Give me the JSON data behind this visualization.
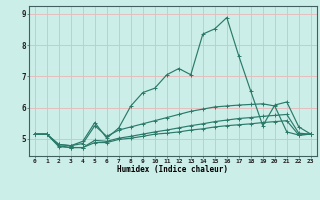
{
  "xlabel": "Humidex (Indice chaleur)",
  "background_color": "#cceee8",
  "grid_color": "#e8b8b8",
  "line_color": "#2a7a6a",
  "xlim": [
    -0.5,
    23.5
  ],
  "ylim": [
    4.45,
    9.25
  ],
  "xticks": [
    0,
    1,
    2,
    3,
    4,
    5,
    6,
    7,
    8,
    9,
    10,
    11,
    12,
    13,
    14,
    15,
    16,
    17,
    18,
    19,
    20,
    21,
    22,
    23
  ],
  "yticks": [
    5,
    6,
    7,
    8,
    9
  ],
  "series": [
    [
      5.15,
      5.15,
      4.78,
      4.72,
      4.72,
      4.88,
      4.88,
      4.98,
      5.02,
      5.08,
      5.15,
      5.18,
      5.22,
      5.28,
      5.32,
      5.38,
      5.42,
      5.45,
      5.48,
      5.52,
      5.55,
      5.58,
      5.12,
      5.15
    ],
    [
      5.15,
      5.15,
      4.75,
      4.72,
      4.72,
      4.95,
      4.92,
      5.02,
      5.08,
      5.15,
      5.22,
      5.28,
      5.35,
      5.42,
      5.48,
      5.55,
      5.6,
      5.65,
      5.68,
      5.72,
      5.75,
      5.78,
      5.18,
      5.15
    ],
    [
      5.15,
      5.15,
      4.82,
      4.78,
      4.85,
      5.42,
      5.08,
      5.28,
      5.38,
      5.48,
      5.58,
      5.68,
      5.78,
      5.88,
      5.95,
      6.02,
      6.05,
      6.08,
      6.1,
      6.12,
      6.05,
      5.22,
      5.12,
      5.15
    ],
    [
      5.15,
      5.15,
      4.82,
      4.78,
      4.92,
      5.52,
      5.02,
      5.35,
      6.05,
      6.48,
      6.62,
      7.05,
      7.25,
      7.05,
      8.35,
      8.52,
      8.88,
      7.65,
      6.52,
      5.42,
      6.08,
      6.18,
      5.38,
      5.15
    ]
  ],
  "figwidth": 3.2,
  "figheight": 2.0,
  "dpi": 100
}
